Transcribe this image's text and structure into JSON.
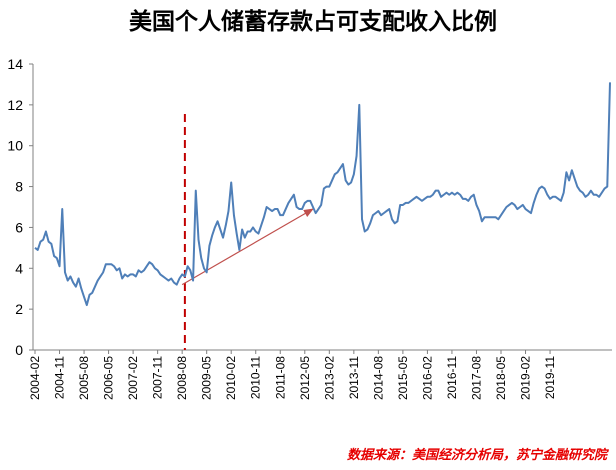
{
  "chart_data": {
    "type": "line",
    "title": "美国个人储蓄存款占可支配收入比例",
    "source": "数据来源：美国经济分析局，苏宁金融研究院",
    "xlabel": "",
    "ylabel": "",
    "ylim": [
      0,
      14
    ],
    "yticks": [
      0,
      2,
      4,
      6,
      8,
      10,
      12,
      14
    ],
    "grid": false,
    "legend": "none",
    "x_tick_labels": [
      "2004-02",
      "2004-11",
      "2005-08",
      "2006-05",
      "2007-02",
      "2007-11",
      "2008-08",
      "2009-05",
      "2010-02",
      "2010-11",
      "2011-08",
      "2012-05",
      "2013-02",
      "2013-11",
      "2014-08",
      "2015-05",
      "2016-02",
      "2016-11",
      "2017-08",
      "2018-05",
      "2019-02",
      "2019-11"
    ],
    "x_start": "2004-02",
    "series": [
      {
        "color": "#4f7fb8",
        "values": [
          5.0,
          4.9,
          5.3,
          5.4,
          5.8,
          5.3,
          5.2,
          4.6,
          4.5,
          4.1,
          6.9,
          3.8,
          3.4,
          3.6,
          3.3,
          3.1,
          3.5,
          3.0,
          2.6,
          2.2,
          2.7,
          2.8,
          3.1,
          3.4,
          3.6,
          3.8,
          4.2,
          4.2,
          4.2,
          4.1,
          3.9,
          4.0,
          3.5,
          3.7,
          3.6,
          3.7,
          3.7,
          3.6,
          3.9,
          3.8,
          3.9,
          4.1,
          4.3,
          4.2,
          4.0,
          3.9,
          3.7,
          3.6,
          3.5,
          3.4,
          3.5,
          3.3,
          3.2,
          3.5,
          3.7,
          3.6,
          4.1,
          3.9,
          3.4,
          7.8,
          5.4,
          4.5,
          4.0,
          3.8,
          5.1,
          5.6,
          6.0,
          6.3,
          5.9,
          5.5,
          6.1,
          6.8,
          8.2,
          6.6,
          5.7,
          4.9,
          5.9,
          5.5,
          5.8,
          5.8,
          6.0,
          5.8,
          5.7,
          6.1,
          6.5,
          7.0,
          6.9,
          6.8,
          6.9,
          6.9,
          6.6,
          6.6,
          6.9,
          7.2,
          7.4,
          7.6,
          7.0,
          6.9,
          6.9,
          7.2,
          7.3,
          7.3,
          7.0,
          6.7,
          6.9,
          7.1,
          7.9,
          8.0,
          8.0,
          8.3,
          8.6,
          8.7,
          8.9,
          9.1,
          8.3,
          8.1,
          8.2,
          8.6,
          9.5,
          12.0,
          6.4,
          5.8,
          5.9,
          6.2,
          6.6,
          6.7,
          6.8,
          6.6,
          6.7,
          6.8,
          6.9,
          6.4,
          6.2,
          6.3,
          7.1,
          7.1,
          7.2,
          7.2,
          7.3,
          7.4,
          7.5,
          7.4,
          7.3,
          7.4,
          7.5,
          7.5,
          7.6,
          7.8,
          7.8,
          7.5,
          7.6,
          7.7,
          7.6,
          7.7,
          7.6,
          7.7,
          7.6,
          7.4,
          7.4,
          7.3,
          7.5,
          7.6,
          7.1,
          6.8,
          6.3,
          6.5,
          6.5,
          6.5,
          6.5,
          6.5,
          6.4,
          6.6,
          6.8,
          7.0,
          7.1,
          7.2,
          7.1,
          6.9,
          7.0,
          7.1,
          6.9,
          6.8,
          6.7,
          7.2,
          7.6,
          7.9,
          8.0,
          7.9,
          7.6,
          7.4,
          7.5,
          7.5,
          7.4,
          7.3,
          7.7,
          8.7,
          8.3,
          8.8,
          8.4,
          8.0,
          7.8,
          7.7,
          7.5,
          7.6,
          7.8,
          7.6,
          7.6,
          7.5,
          7.7,
          7.9,
          8.0,
          13.1
        ]
      }
    ],
    "annotations": [
      {
        "type": "vertical-dashed-line",
        "x": "2008-09",
        "color": "#c00000"
      },
      {
        "type": "arrow",
        "from": {
          "x": "2008-08",
          "y": 3.2
        },
        "to": {
          "x": "2012-08",
          "y": 6.9
        },
        "color": "#c0504d"
      }
    ]
  }
}
